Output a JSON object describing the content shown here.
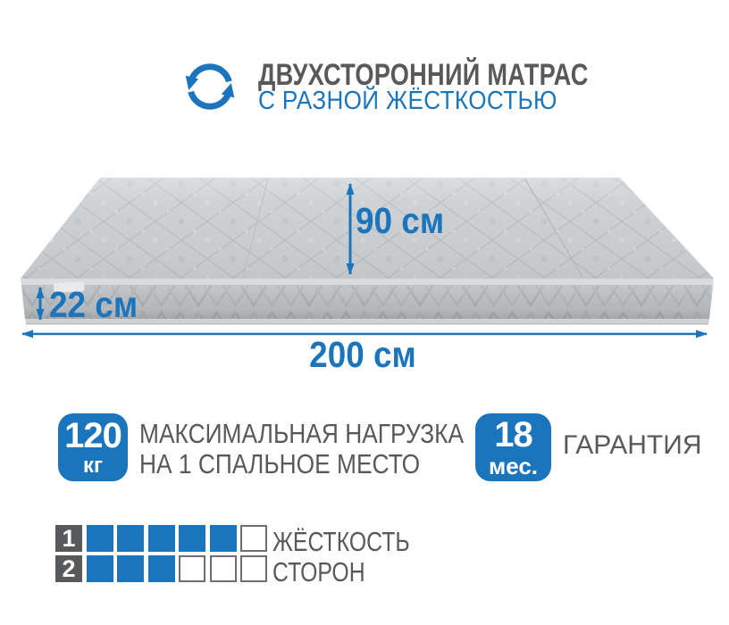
{
  "colors": {
    "accent_blue": "#1B75BC",
    "text_gray": "#58595B",
    "square_empty_border": "#6D6E71",
    "mattress_top_gray": "#C6C9CC",
    "mattress_side_gray": "#B6B9BC"
  },
  "header": {
    "icon": "rotate-arrows-icon",
    "title": "ДВУХСТОРОННИЙ МАТРАС",
    "subtitle": "С РАЗНОЙ ЖЁСТКОСТЬЮ"
  },
  "dimensions": {
    "width": "90 см",
    "height": "22 см",
    "length": "200 см"
  },
  "load_badge": {
    "value": "120",
    "unit": "кг",
    "line1": "МАКСИМАЛЬНАЯ НАГРУЗКА",
    "line2": "НА 1 СПАЛЬНОЕ МЕСТО"
  },
  "warranty_badge": {
    "value": "18",
    "unit": "мес.",
    "label": "ГАРАНТИЯ"
  },
  "firmness": {
    "label_line1": "ЖЁСТКОСТЬ",
    "label_line2": "СТОРОН",
    "rows": [
      {
        "side": "1",
        "filled": 5,
        "total": 6
      },
      {
        "side": "2",
        "filled": 3,
        "total": 6
      }
    ]
  }
}
